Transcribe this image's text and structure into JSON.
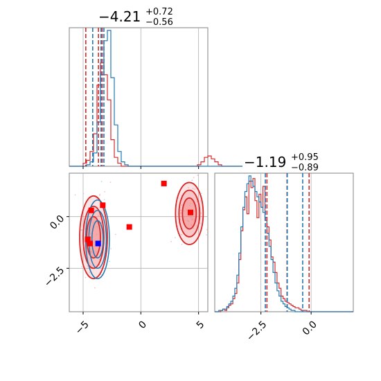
{
  "colors": {
    "red": "#d62728",
    "blue": "#1f77b4",
    "red_fill": "#f08080",
    "grid": "#b0b0b0"
  },
  "chart_data": {
    "type": "corner",
    "parameters": [
      {
        "title_value": "−4.21",
        "title_plus": "+0.72",
        "title_minus": "−0.56"
      },
      {
        "title_value": "−1.19",
        "title_plus": "+0.95",
        "title_minus": "−0.89"
      }
    ],
    "x_range_param0": [
      -6.2,
      5.8
    ],
    "x_range_param1": [
      -4.8,
      2.1
    ],
    "y_range_param1": [
      -4.6,
      2.1
    ],
    "ticks_param0": [
      {
        "value": -5,
        "label": "−5"
      },
      {
        "value": 0,
        "label": "0"
      },
      {
        "value": 5,
        "label": "5"
      }
    ],
    "ticks_param1": [
      {
        "value": -2.5,
        "label": "−2.5"
      },
      {
        "value": 0.0,
        "label": "0.0"
      }
    ],
    "quantile_lines": {
      "param0_red": [
        -4.77,
        -3.67,
        -3.35
      ],
      "param0_blue": [
        -4.17,
        -3.45,
        -3.2
      ],
      "param1_red": [
        -2.2,
        -1.2,
        -0.1
      ],
      "param1_blue": [
        -2.28,
        -1.19,
        -0.42
      ]
    },
    "hist1d_param0": {
      "bin_start": -6.2,
      "bin_width": 0.3,
      "red": [
        0,
        0,
        0,
        0,
        2,
        4,
        10,
        22,
        55,
        70,
        62,
        45,
        18,
        6,
        2,
        0,
        0,
        0,
        0,
        0,
        0,
        0,
        0,
        0,
        0,
        0,
        0,
        0,
        0,
        0,
        0,
        0,
        0,
        0,
        0,
        0,
        0,
        1,
        3,
        6,
        7,
        5,
        3,
        1,
        0,
        0,
        0,
        0,
        0,
        0
      ],
      "blue": [
        0,
        0,
        0,
        0,
        0,
        1,
        3,
        9,
        30,
        62,
        85,
        92,
        60,
        28,
        10,
        3,
        1,
        0,
        0,
        0,
        0,
        0,
        0,
        0,
        0,
        0,
        0,
        0,
        0,
        0,
        0,
        0,
        0,
        0,
        0,
        0,
        0,
        0,
        0,
        0,
        0,
        0,
        0,
        0,
        0,
        0,
        0,
        0,
        0,
        0
      ]
    },
    "hist1d_param1": {
      "bin_start": -4.8,
      "bin_width": 0.1,
      "red": [
        0,
        0,
        0,
        1,
        2,
        1,
        3,
        5,
        6,
        10,
        14,
        22,
        40,
        62,
        78,
        88,
        75,
        100,
        95,
        102,
        85,
        72,
        90,
        80,
        96,
        70,
        65,
        55,
        42,
        38,
        30,
        22,
        18,
        12,
        10,
        8,
        7,
        6,
        5,
        4,
        3,
        3,
        2,
        1,
        1,
        1,
        0,
        0,
        0,
        0,
        0,
        0,
        0,
        0,
        0,
        0,
        0,
        0,
        0,
        0,
        0,
        0,
        0,
        0,
        0,
        0,
        0,
        0,
        0
      ],
      "blue": [
        0,
        0,
        1,
        1,
        2,
        2,
        4,
        6,
        8,
        12,
        18,
        28,
        45,
        65,
        80,
        92,
        98,
        104,
        100,
        96,
        92,
        88,
        84,
        80,
        76,
        72,
        60,
        50,
        40,
        30,
        22,
        16,
        12,
        8,
        6,
        4,
        3,
        2,
        1,
        1,
        0,
        0,
        0,
        0,
        0,
        0,
        0,
        0,
        0,
        0,
        0,
        0,
        0,
        0,
        0,
        0,
        0,
        0,
        0,
        0,
        0,
        0,
        0,
        0,
        0,
        0,
        0,
        0,
        0
      ]
    },
    "scatter_points": {
      "red": [
        [
          2.0,
          1.6
        ],
        [
          -3.3,
          0.55
        ],
        [
          -4.3,
          0.3
        ],
        [
          -1.0,
          -0.5
        ],
        [
          -4.6,
          -1.1
        ],
        [
          -4.4,
          -1.3
        ],
        [
          4.3,
          0.2
        ]
      ],
      "blue": [
        [
          -3.7,
          -1.3
        ]
      ]
    },
    "contour_clusters": [
      {
        "cx": -4.1,
        "cy": -1.0,
        "rx": 1.2,
        "ry": 2.0
      },
      {
        "cx": 4.2,
        "cy": 0.15,
        "rx": 1.2,
        "ry": 1.5
      }
    ]
  }
}
